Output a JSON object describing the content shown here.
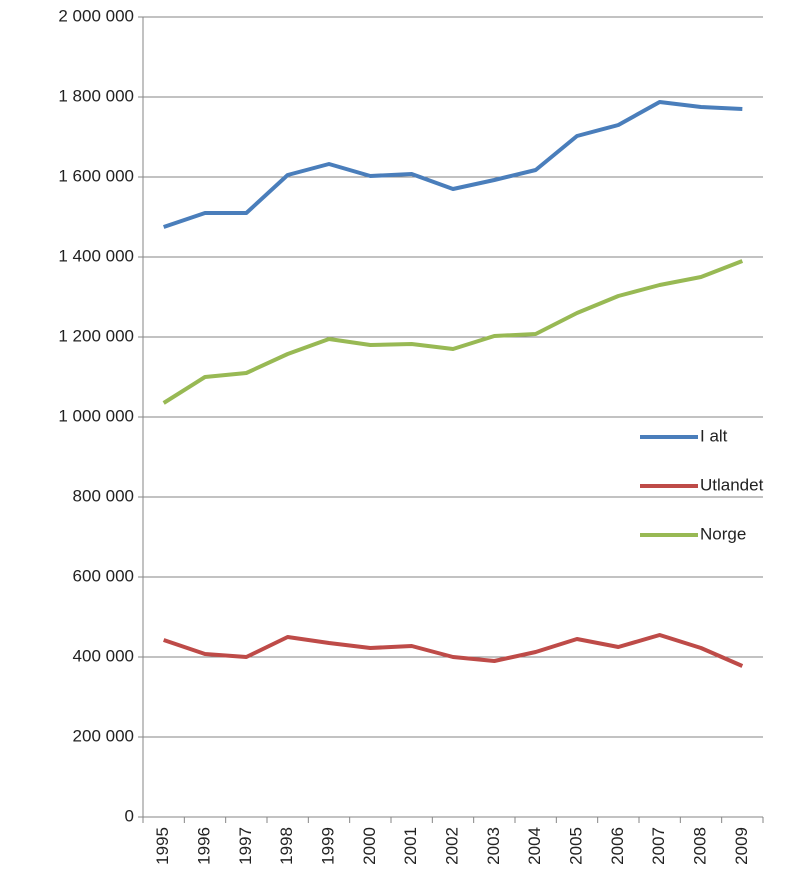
{
  "chart_data": {
    "type": "line",
    "categories": [
      "1995",
      "1996",
      "1997",
      "1998",
      "1999",
      "2000",
      "2001",
      "2002",
      "2003",
      "2004",
      "2005",
      "2006",
      "2007",
      "2008",
      "2009"
    ],
    "series": [
      {
        "name": "I alt",
        "color": "#4a7ebb",
        "values": [
          1475000,
          1510000,
          1510000,
          1605000,
          1632500,
          1602500,
          1607500,
          1570000,
          1592500,
          1617500,
          1702500,
          1730000,
          1787500,
          1775000,
          1770000
        ]
      },
      {
        "name": "Utlandet",
        "color": "#be4b48",
        "values": [
          442500,
          407500,
          400000,
          450000,
          435000,
          422500,
          427500,
          400000,
          390000,
          412500,
          445000,
          425000,
          455000,
          422500,
          377500
        ]
      },
      {
        "name": "Norge",
        "color": "#98b954",
        "values": [
          1035000,
          1100000,
          1110000,
          1157500,
          1195000,
          1180000,
          1182500,
          1170000,
          1202500,
          1207500,
          1260000,
          1302500,
          1330000,
          1350000,
          1390000
        ]
      }
    ],
    "ylim": [
      0,
      2000000
    ],
    "yticks": [
      0,
      {
        "value": 200000,
        "label": "200 000"
      },
      {
        "value": 400000,
        "label": "400 000"
      },
      {
        "value": 600000,
        "label": "600 000"
      },
      {
        "value": 800000,
        "label": "800 000"
      },
      {
        "value": 1000000,
        "label": "1 000 000"
      },
      {
        "value": 1200000,
        "label": "1 200 000"
      },
      {
        "value": 1400000,
        "label": "1 400 000"
      },
      {
        "value": 1600000,
        "label": "1 600 000"
      },
      {
        "value": 1800000,
        "label": "1 800 000"
      },
      {
        "value": 2000000,
        "label": "2 000 000"
      }
    ],
    "grid": true,
    "legend": "right"
  }
}
